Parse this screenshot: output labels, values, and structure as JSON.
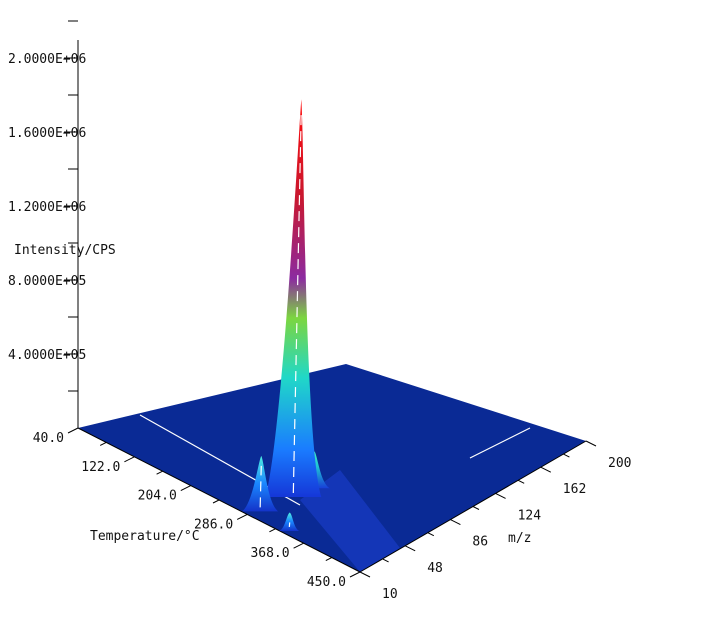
{
  "chart_data": {
    "type": "surface3d",
    "ylabel": "Intensity/CPS",
    "xlabel": "Temperature/°C",
    "zlabel": "m/z",
    "intensity_ticks": [
      "2.0000E+06",
      "1.6000E+06",
      "1.2000E+06",
      "8.0000E+05",
      "4.0000E+05"
    ],
    "intensity_tick_values": [
      2000000,
      1600000,
      1200000,
      800000,
      400000
    ],
    "temperature_ticks": [
      "40.0",
      "122.0",
      "204.0",
      "286.0",
      "368.0",
      "450.0"
    ],
    "temperature_tick_values": [
      40,
      122,
      204,
      286,
      368,
      450
    ],
    "mz_ticks": [
      "10",
      "48",
      "86",
      "124",
      "162",
      "200"
    ],
    "mz_tick_values": [
      10,
      48,
      86,
      124,
      162,
      200
    ],
    "xlim": [
      40,
      450
    ],
    "zlim": [
      10,
      200
    ],
    "ylim": [
      0,
      2000000
    ],
    "peaks": [
      {
        "temperature": 290,
        "mz": 44,
        "intensity": 2150000
      },
      {
        "temperature": 290,
        "mz": 18,
        "intensity": 300000
      },
      {
        "temperature": 290,
        "mz": 60,
        "intensity": 200000
      },
      {
        "temperature": 340,
        "mz": 14,
        "intensity": 100000
      }
    ],
    "colors": {
      "floor": "#0a2a95",
      "peak_low": "#1a4cff",
      "peak_mid": "#22d8c4",
      "peak_high": "#ee1111"
    }
  }
}
